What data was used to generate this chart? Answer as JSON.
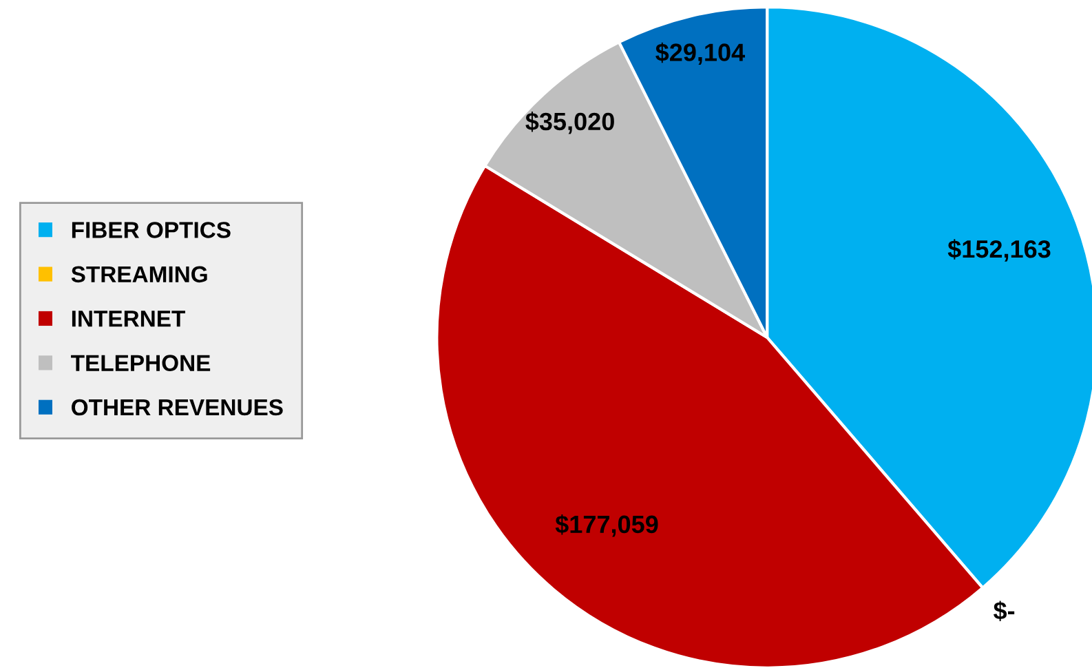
{
  "chart_data": {
    "type": "pie",
    "categories": [
      "FIBER OPTICS",
      "STREAMING",
      "INTERNET",
      "TELEPHONE",
      "OTHER REVENUES"
    ],
    "values": [
      152163,
      0,
      177059,
      35020,
      29104
    ],
    "colors": [
      "#00b0f0",
      "#ffc000",
      "#c00000",
      "#bfbfbf",
      "#0070c0"
    ],
    "value_labels": [
      "$152,163",
      "$-",
      "$177,059",
      "$35,020",
      "$29,104"
    ],
    "legend": "left"
  }
}
